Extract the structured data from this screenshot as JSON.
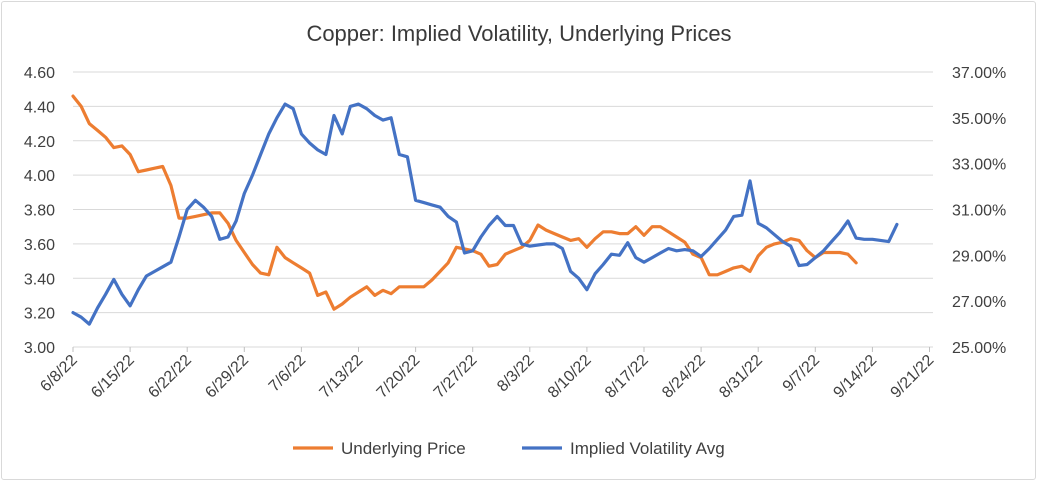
{
  "chart_data": {
    "type": "line",
    "title": "Copper: Implied Volatility, Underlying Prices",
    "x_tick_labels": [
      "6/8/22",
      "6/15/22",
      "6/22/22",
      "6/29/22",
      "7/6/22",
      "7/13/22",
      "7/20/22",
      "7/27/22",
      "8/3/22",
      "8/10/22",
      "8/17/22",
      "8/24/22",
      "8/31/22",
      "9/7/22",
      "9/14/22",
      "9/21/22"
    ],
    "y_left": {
      "min": 3.0,
      "max": 4.6,
      "ticks": [
        "3.00",
        "3.20",
        "3.40",
        "3.60",
        "3.80",
        "4.00",
        "4.20",
        "4.40",
        "4.60"
      ]
    },
    "y_right": {
      "min": 25.0,
      "max": 37.0,
      "ticks": [
        "25.00%",
        "27.00%",
        "29.00%",
        "31.00%",
        "33.00%",
        "35.00%",
        "37.00%"
      ]
    },
    "series": [
      {
        "name": "Underlying Price",
        "axis": "left",
        "color": "#ED7D31",
        "points": [
          [
            0,
            4.46
          ],
          [
            1,
            4.4
          ],
          [
            2,
            4.3
          ],
          [
            3,
            4.26
          ],
          [
            4,
            4.22
          ],
          [
            5,
            4.16
          ],
          [
            6,
            4.17
          ],
          [
            7,
            4.12
          ],
          [
            8,
            4.02
          ],
          [
            9,
            4.03
          ],
          [
            10,
            4.04
          ],
          [
            11,
            4.05
          ],
          [
            12,
            3.94
          ],
          [
            13,
            3.75
          ],
          [
            14,
            3.75
          ],
          [
            15,
            3.76
          ],
          [
            16,
            3.77
          ],
          [
            17,
            3.78
          ],
          [
            18,
            3.78
          ],
          [
            19,
            3.72
          ],
          [
            20,
            3.62
          ],
          [
            21,
            3.55
          ],
          [
            22,
            3.48
          ],
          [
            23,
            3.43
          ],
          [
            24,
            3.42
          ],
          [
            25,
            3.58
          ],
          [
            26,
            3.52
          ],
          [
            27,
            3.49
          ],
          [
            28,
            3.46
          ],
          [
            29,
            3.43
          ],
          [
            30,
            3.3
          ],
          [
            31,
            3.32
          ],
          [
            32,
            3.22
          ],
          [
            33,
            3.25
          ],
          [
            34,
            3.29
          ],
          [
            35,
            3.32
          ],
          [
            36,
            3.35
          ],
          [
            37,
            3.3
          ],
          [
            38,
            3.33
          ],
          [
            39,
            3.31
          ],
          [
            40,
            3.35
          ],
          [
            41,
            3.35
          ],
          [
            42,
            3.35
          ],
          [
            43,
            3.35
          ],
          [
            44,
            3.39
          ],
          [
            45,
            3.44
          ],
          [
            46,
            3.49
          ],
          [
            47,
            3.58
          ],
          [
            48,
            3.57
          ],
          [
            49,
            3.56
          ],
          [
            50,
            3.54
          ],
          [
            51,
            3.47
          ],
          [
            52,
            3.48
          ],
          [
            53,
            3.54
          ],
          [
            54,
            3.56
          ],
          [
            55,
            3.58
          ],
          [
            56,
            3.62
          ],
          [
            57,
            3.71
          ],
          [
            58,
            3.68
          ],
          [
            59,
            3.66
          ],
          [
            60,
            3.64
          ],
          [
            61,
            3.62
          ],
          [
            62,
            3.63
          ],
          [
            63,
            3.58
          ],
          [
            64,
            3.63
          ],
          [
            65,
            3.67
          ],
          [
            66,
            3.67
          ],
          [
            67,
            3.66
          ],
          [
            68,
            3.66
          ],
          [
            69,
            3.7
          ],
          [
            70,
            3.65
          ],
          [
            71,
            3.7
          ],
          [
            72,
            3.7
          ],
          [
            73,
            3.67
          ],
          [
            74,
            3.64
          ],
          [
            75,
            3.61
          ],
          [
            76,
            3.54
          ],
          [
            77,
            3.52
          ],
          [
            78,
            3.42
          ],
          [
            79,
            3.42
          ],
          [
            80,
            3.44
          ],
          [
            81,
            3.46
          ],
          [
            82,
            3.47
          ],
          [
            83,
            3.44
          ],
          [
            84,
            3.53
          ],
          [
            85,
            3.58
          ],
          [
            86,
            3.6
          ],
          [
            87,
            3.61
          ],
          [
            88,
            3.63
          ],
          [
            89,
            3.62
          ],
          [
            90,
            3.56
          ],
          [
            91,
            3.52
          ],
          [
            92,
            3.55
          ],
          [
            93,
            3.55
          ],
          [
            94,
            3.55
          ],
          [
            95,
            3.54
          ],
          [
            96,
            3.49
          ]
        ]
      },
      {
        "name": "Implied Volatility Avg",
        "axis": "right",
        "color": "#4472C4",
        "points": [
          [
            0,
            26.5
          ],
          [
            1,
            26.3
          ],
          [
            2,
            26.0
          ],
          [
            3,
            26.7
          ],
          [
            4,
            27.3
          ],
          [
            5,
            27.95
          ],
          [
            6,
            27.3
          ],
          [
            7,
            26.8
          ],
          [
            8,
            27.5
          ],
          [
            9,
            28.1
          ],
          [
            10,
            28.3
          ],
          [
            11,
            28.5
          ],
          [
            12,
            28.7
          ],
          [
            13,
            29.8
          ],
          [
            14,
            31.0
          ],
          [
            15,
            31.4
          ],
          [
            16,
            31.1
          ],
          [
            17,
            30.7
          ],
          [
            18,
            29.7
          ],
          [
            19,
            29.8
          ],
          [
            20,
            30.5
          ],
          [
            21,
            31.7
          ],
          [
            22,
            32.5
          ],
          [
            23,
            33.4
          ],
          [
            24,
            34.3
          ],
          [
            25,
            35.0
          ],
          [
            26,
            35.6
          ],
          [
            27,
            35.4
          ],
          [
            28,
            34.3
          ],
          [
            29,
            33.9
          ],
          [
            30,
            33.6
          ],
          [
            31,
            33.4
          ],
          [
            32,
            35.1
          ],
          [
            33,
            34.3
          ],
          [
            34,
            35.5
          ],
          [
            35,
            35.6
          ],
          [
            36,
            35.4
          ],
          [
            37,
            35.1
          ],
          [
            38,
            34.9
          ],
          [
            39,
            35.0
          ],
          [
            40,
            33.4
          ],
          [
            41,
            33.3
          ],
          [
            42,
            31.4
          ],
          [
            43,
            31.3
          ],
          [
            44,
            31.2
          ],
          [
            45,
            31.1
          ],
          [
            46,
            30.7
          ],
          [
            47,
            30.45
          ],
          [
            48,
            29.1
          ],
          [
            49,
            29.2
          ],
          [
            50,
            29.8
          ],
          [
            51,
            30.3
          ],
          [
            52,
            30.7
          ],
          [
            53,
            30.3
          ],
          [
            54,
            30.3
          ],
          [
            55,
            29.5
          ],
          [
            56,
            29.4
          ],
          [
            57,
            29.45
          ],
          [
            58,
            29.5
          ],
          [
            59,
            29.5
          ],
          [
            60,
            29.3
          ],
          [
            61,
            28.3
          ],
          [
            62,
            28.0
          ],
          [
            63,
            27.5
          ],
          [
            64,
            28.2
          ],
          [
            65,
            28.6
          ],
          [
            66,
            29.05
          ],
          [
            67,
            29.0
          ],
          [
            68,
            29.55
          ],
          [
            69,
            28.9
          ],
          [
            70,
            28.7
          ],
          [
            71,
            28.9
          ],
          [
            72,
            29.1
          ],
          [
            73,
            29.3
          ],
          [
            74,
            29.2
          ],
          [
            75,
            29.25
          ],
          [
            76,
            29.2
          ],
          [
            77,
            28.95
          ],
          [
            78,
            29.3
          ],
          [
            79,
            29.7
          ],
          [
            80,
            30.1
          ],
          [
            81,
            30.7
          ],
          [
            82,
            30.75
          ],
          [
            83,
            32.25
          ],
          [
            84,
            30.4
          ],
          [
            85,
            30.2
          ],
          [
            86,
            29.9
          ],
          [
            87,
            29.6
          ],
          [
            88,
            29.4
          ],
          [
            89,
            28.55
          ],
          [
            90,
            28.6
          ],
          [
            91,
            28.9
          ],
          [
            92,
            29.2
          ],
          [
            93,
            29.6
          ],
          [
            94,
            30.0
          ],
          [
            95,
            30.5
          ],
          [
            96,
            29.75
          ],
          [
            97,
            29.7
          ],
          [
            98,
            29.7
          ],
          [
            99,
            29.65
          ],
          [
            100,
            29.6
          ],
          [
            101,
            30.35
          ]
        ]
      }
    ],
    "legend": {
      "position": "bottom"
    },
    "grid": true
  }
}
